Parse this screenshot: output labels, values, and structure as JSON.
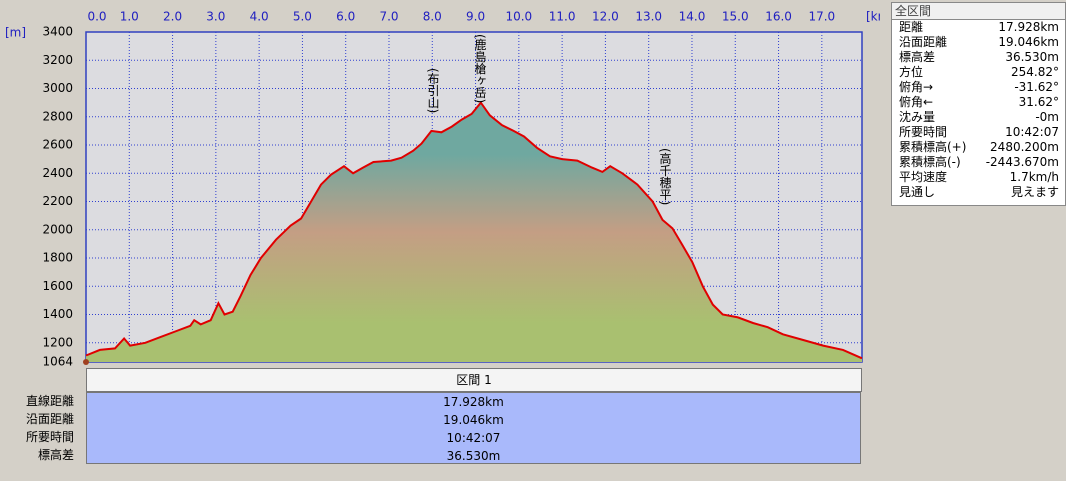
{
  "chart_data": {
    "type": "area",
    "x_unit": "[km]",
    "y_unit": "[m]",
    "x": [
      0,
      0.32,
      0.67,
      0.88,
      1.02,
      1.37,
      1.72,
      2.06,
      2.41,
      2.5,
      2.65,
      2.88,
      3.06,
      3.2,
      3.39,
      3.57,
      3.8,
      4.04,
      4.39,
      4.73,
      4.97,
      5.2,
      5.43,
      5.66,
      5.96,
      6.17,
      6.4,
      6.64,
      7.05,
      7.29,
      7.56,
      7.75,
      7.98,
      8.21,
      8.45,
      8.68,
      8.91,
      9.12,
      9.33,
      9.61,
      9.88,
      10.12,
      10.42,
      10.72,
      11.0,
      11.35,
      11.69,
      11.93,
      12.11,
      12.39,
      12.74,
      13.09,
      13.32,
      13.55,
      13.78,
      14.01,
      14.25,
      14.48,
      14.71,
      15.06,
      15.41,
      15.75,
      16.1,
      16.57,
      17.03,
      17.49,
      17.928
    ],
    "values": [
      1110,
      1150,
      1160,
      1230,
      1180,
      1200,
      1240,
      1280,
      1320,
      1360,
      1330,
      1360,
      1480,
      1400,
      1420,
      1530,
      1680,
      1800,
      1930,
      2030,
      2080,
      2200,
      2320,
      2390,
      2450,
      2400,
      2440,
      2480,
      2490,
      2510,
      2560,
      2610,
      2700,
      2690,
      2730,
      2780,
      2820,
      2900,
      2810,
      2740,
      2700,
      2660,
      2580,
      2520,
      2500,
      2490,
      2440,
      2410,
      2450,
      2400,
      2320,
      2200,
      2070,
      2010,
      1890,
      1770,
      1600,
      1470,
      1400,
      1380,
      1340,
      1310,
      1260,
      1220,
      1180,
      1150,
      1090
    ],
    "color": "#e00000",
    "xlim": [
      0,
      17.928
    ],
    "ylim": [
      1064,
      3400
    ],
    "xticks": [
      {
        "value": 0,
        "label": "0.0"
      },
      {
        "value": 1,
        "label": "1.0"
      },
      {
        "value": 2,
        "label": "2.0"
      },
      {
        "value": 3,
        "label": "3.0"
      },
      {
        "value": 4,
        "label": "4.0"
      },
      {
        "value": 5,
        "label": "5.0"
      },
      {
        "value": 6,
        "label": "6.0"
      },
      {
        "value": 7,
        "label": "7.0"
      },
      {
        "value": 8,
        "label": "8.0"
      },
      {
        "value": 9,
        "label": "9.0"
      },
      {
        "value": 10,
        "label": "10.0"
      },
      {
        "value": 11,
        "label": "11.0"
      },
      {
        "value": 12,
        "label": "12.0"
      },
      {
        "value": 13,
        "label": "13.0"
      },
      {
        "value": 14,
        "label": "14.0"
      },
      {
        "value": 15,
        "label": "15.0"
      },
      {
        "value": 16,
        "label": "16.0"
      },
      {
        "value": 17,
        "label": "17.0"
      }
    ],
    "yticks": [
      1064,
      1200,
      1400,
      1600,
      1800,
      2000,
      2200,
      2400,
      2600,
      2800,
      3000,
      3200,
      3400
    ],
    "grid": true,
    "annotations": [
      "(布引山)",
      "(鹿島槍ヶ岳)",
      "(高千穂平)"
    ]
  },
  "panel": {
    "title": "全区間",
    "rows": [
      [
        "距離",
        "17.928km"
      ],
      [
        "沿面距離",
        "19.046km"
      ],
      [
        "標高差",
        "36.530m"
      ],
      [
        "方位",
        "254.82°"
      ],
      [
        "俯角→",
        "-31.62°"
      ],
      [
        "俯角←",
        "31.62°"
      ],
      [
        "沈み量",
        "-0m"
      ],
      [
        "所要時間",
        "10:42:07"
      ],
      [
        "累積標高(+)",
        "2480.200m"
      ],
      [
        "累積標高(-)",
        "-2443.670m"
      ],
      [
        "平均速度",
        "1.7km/h"
      ],
      [
        "見通し",
        "見えます"
      ]
    ]
  },
  "segment_table": {
    "header": "区間 1",
    "rows": [
      [
        "直線距離",
        "17.928km"
      ],
      [
        "沿面距離",
        "19.046km"
      ],
      [
        "所要時間",
        "10:42:07"
      ],
      [
        "標高差",
        "36.530m"
      ]
    ]
  }
}
